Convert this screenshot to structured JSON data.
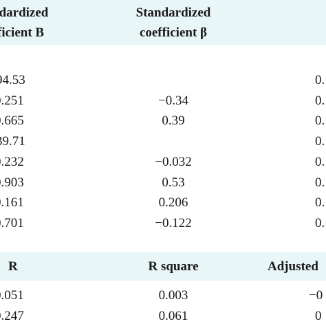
{
  "header": {
    "col1_line1": "ndardized",
    "col1_line2": "ficient B",
    "col2_line1": "Standardized",
    "col2_line2": "coefficient β"
  },
  "block1": [
    {
      "b": "94.53",
      "beta": "",
      "p": "0."
    },
    {
      "b": "0.251",
      "beta": "−0.34",
      "p": "0."
    },
    {
      "b": "0.665",
      "beta": "0.39",
      "p": "0."
    }
  ],
  "block2": [
    {
      "b": "39.71",
      "beta": "",
      "p": "0."
    },
    {
      "b": "0.232",
      "beta": "−0.032",
      "p": "0."
    },
    {
      "b": "0.903",
      "beta": "0.53",
      "p": "0."
    },
    {
      "b": "0.161",
      "beta": "0.206",
      "p": "0."
    },
    {
      "b": "0.701",
      "beta": "−0.122",
      "p": "0."
    }
  ],
  "model_header": {
    "r": "R",
    "r_square": "R square",
    "adjusted": "Adjusted"
  },
  "model_rows": [
    {
      "r": "0.051",
      "r_square": "0.003",
      "adjusted": "−0"
    },
    {
      "r": "0.247",
      "r_square": "0.061",
      "adjusted": "0"
    }
  ]
}
